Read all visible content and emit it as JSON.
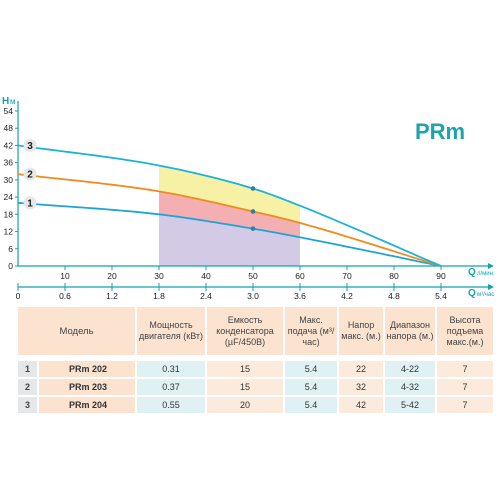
{
  "brand_label": "PRm",
  "colors": {
    "axis": "#12a4ad",
    "brand": "#1aa5ae",
    "curve_blue": "#1fa3d9",
    "curve_orange": "#f28a1e",
    "curve_cyan": "#1db3d8",
    "zone_yellow": "#f6ef95",
    "zone_red": "#f2a1a6",
    "zone_purple": "#cbc2e2",
    "marker_circle": "#e6e7e8"
  },
  "chart_data": {
    "type": "line",
    "y_axis_label": "H",
    "y_axis_unit": "м",
    "y_ticks": [
      0,
      6,
      12,
      18,
      24,
      30,
      36,
      42,
      48,
      54
    ],
    "ylim": [
      0,
      54
    ],
    "x_axis_label": "Q",
    "x_axis_unit": "л/мин",
    "x_ticks": [
      10,
      20,
      30,
      40,
      50,
      60,
      70,
      80,
      90
    ],
    "xlim": [
      0,
      100
    ],
    "x2_axis_label": "Q",
    "x2_axis_unit": "м³/час",
    "x2_ticks": [
      "0",
      "0.6",
      "1.2",
      "1.8",
      "2.4",
      "3.0",
      "3.6",
      "4.2",
      "4.8",
      "5.4"
    ],
    "operating_range": [
      30,
      60
    ],
    "series": [
      {
        "marker": "1",
        "x": [
          0,
          30,
          50,
          60,
          90
        ],
        "y": [
          22,
          18,
          13,
          10,
          0
        ]
      },
      {
        "marker": "2",
        "x": [
          0,
          30,
          50,
          60,
          90
        ],
        "y": [
          32,
          26,
          19,
          15,
          0
        ]
      },
      {
        "marker": "3",
        "x": [
          0,
          30,
          50,
          60,
          90
        ],
        "y": [
          42,
          35,
          27,
          21,
          0
        ]
      }
    ],
    "markers": [
      {
        "x": 50,
        "y": 13
      },
      {
        "x": 50,
        "y": 19
      },
      {
        "x": 50,
        "y": 27
      }
    ]
  },
  "table": {
    "headers": [
      "Модель",
      "Мощность двигателя (кВт)",
      "Емкость конденсатора (µF/450В)",
      "Макс. подача (м³/час)",
      "Напор макс. (м.)",
      "Диапазон напора (м.)",
      "Высота подъема макс.(м.)"
    ],
    "rows": [
      {
        "num": "1",
        "model": "PRm 202",
        "power": "0.31",
        "capacitor": "15",
        "flow": "5.4",
        "head": "22",
        "range": "4-22",
        "height": "7"
      },
      {
        "num": "2",
        "model": "PRm 203",
        "power": "0.37",
        "capacitor": "15",
        "flow": "5.4",
        "head": "32",
        "range": "4-32",
        "height": "7"
      },
      {
        "num": "3",
        "model": "PRm 204",
        "power": "0.55",
        "capacitor": "20",
        "flow": "5.4",
        "head": "42",
        "range": "5-42",
        "height": "7"
      }
    ]
  }
}
